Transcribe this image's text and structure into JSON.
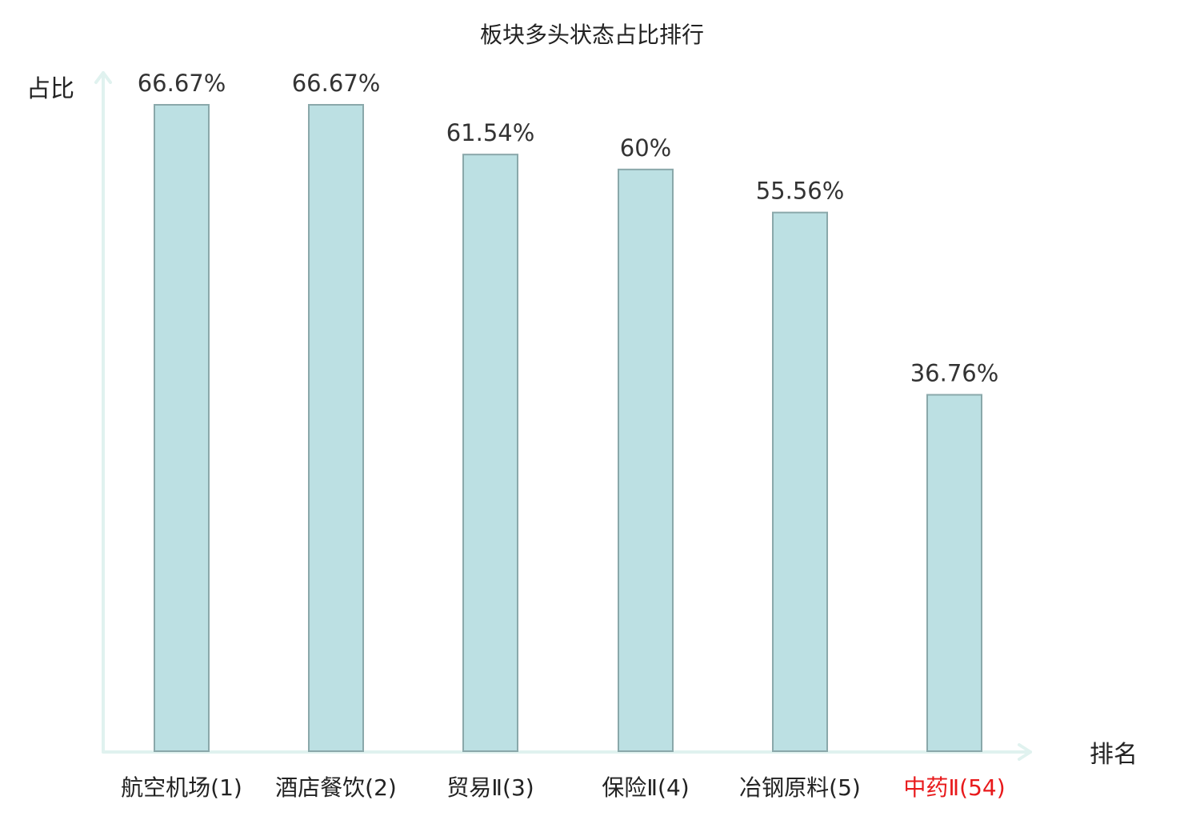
{
  "chart_data": {
    "type": "bar",
    "title": "板块多头状态占比排行",
    "xlabel": "排名",
    "ylabel": "占比",
    "categories": [
      "航空机场(1)",
      "酒店餐饮(2)",
      "贸易Ⅱ(3)",
      "保险Ⅱ(4)",
      "冶钢原料(5)",
      "中药Ⅱ(54)"
    ],
    "values": [
      66.67,
      66.67,
      61.54,
      60,
      55.56,
      36.76
    ],
    "value_labels": [
      "66.67%",
      "66.67%",
      "61.54%",
      "60%",
      "55.56%",
      "36.76%"
    ],
    "highlight_index": 5,
    "ylim": [
      0,
      80
    ],
    "grid": false,
    "legend": "none"
  },
  "colors": {
    "bar_fill": "#bce0e3",
    "bar_stroke": "#8aa8aa",
    "axis": "#e0f2ef",
    "label_default": "#222222",
    "label_highlight": "#e8191b"
  }
}
